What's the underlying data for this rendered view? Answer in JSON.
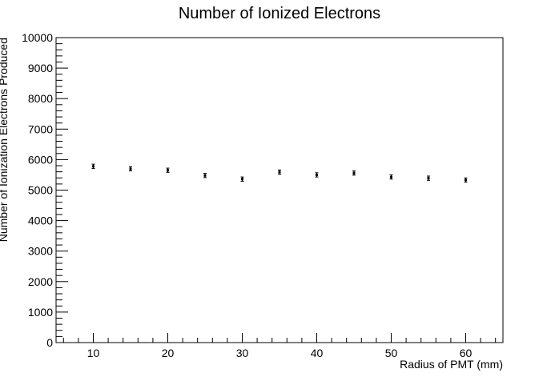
{
  "chart_data": {
    "type": "scatter",
    "title": "Number of Ionized Electrons",
    "xlabel": "Radius of PMT (mm)",
    "ylabel": "Number of Ionization Electrons Produced",
    "xlim": [
      5,
      65
    ],
    "ylim": [
      0,
      10000
    ],
    "xticks": [
      10,
      20,
      30,
      40,
      50,
      60
    ],
    "yticks": [
      0,
      1000,
      2000,
      3000,
      4000,
      5000,
      6000,
      7000,
      8000,
      9000,
      10000
    ],
    "grid": false,
    "legend": "none",
    "error_bars": true,
    "series": [
      {
        "x": [
          10,
          15,
          20,
          25,
          30,
          35,
          40,
          45,
          50,
          55,
          60
        ],
        "y": [
          5780,
          5700,
          5650,
          5480,
          5360,
          5590,
          5500,
          5560,
          5430,
          5390,
          5330
        ],
        "yerr": [
          70,
          70,
          70,
          70,
          70,
          70,
          70,
          70,
          70,
          70,
          70
        ]
      }
    ]
  }
}
